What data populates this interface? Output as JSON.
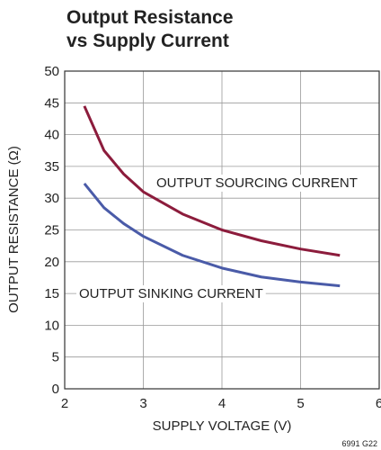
{
  "chart_data": {
    "type": "line",
    "title": [
      "Output Resistance",
      "vs Supply Current"
    ],
    "x_label": "SUPPLY VOLTAGE (V)",
    "y_label": "OUTPUT RESISTANCE (Ω)",
    "annotations": [
      "OUTPUT SOURCING CURRENT",
      "OUTPUT SINKING CURRENT"
    ],
    "footnote": "6991 G22",
    "x": [
      2.25,
      2.5,
      2.75,
      3,
      3.5,
      4,
      4.5,
      5,
      5.5
    ],
    "series": [
      {
        "name": "OUTPUT SOURCING CURRENT",
        "color": "#8c1c3c",
        "values": [
          44.5,
          37.5,
          33.8,
          31,
          27.5,
          25,
          23.3,
          22,
          21
        ]
      },
      {
        "name": "OUTPUT SINKING CURRENT",
        "color": "#4a5ba8",
        "values": [
          32.3,
          28.5,
          26,
          24,
          21,
          19,
          17.6,
          16.8,
          16.2
        ]
      }
    ],
    "xlim": [
      2,
      6
    ],
    "xticks": [
      2,
      3,
      4,
      5,
      6
    ],
    "ylim": [
      0,
      50
    ],
    "yticks": [
      0,
      5,
      10,
      15,
      20,
      25,
      30,
      35,
      40,
      45,
      50
    ],
    "grid": true
  }
}
